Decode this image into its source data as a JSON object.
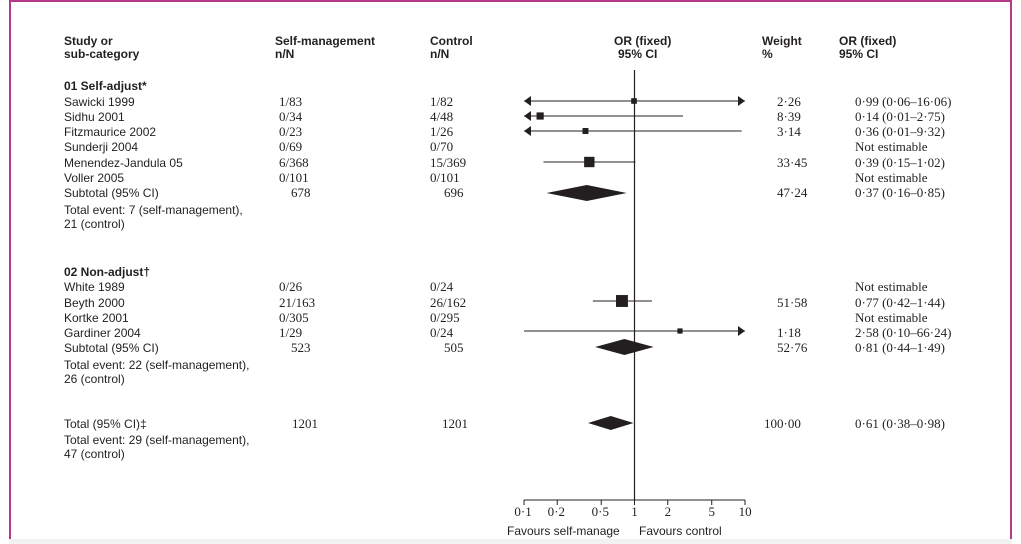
{
  "header": {
    "study_line1": "Study or",
    "study_line2": "sub-category",
    "sm_line1": "Self-management",
    "sm_line2": "n/N",
    "ctrl_line1": "Control",
    "ctrl_line2": "n/N",
    "or_line1": "OR (fixed)",
    "or_line2": "95% CI",
    "weight_line1": "Weight",
    "weight_line2": "%",
    "orci_line1": "OR (fixed)",
    "orci_line2": "95% CI"
  },
  "groups": [
    {
      "title": "01 Self-adjust*",
      "studies": [
        {
          "name": "Sawicki 1999",
          "sm": "1/83",
          "ctrl": "1/82",
          "weight": "2·26",
          "or_text": "0·99 (0·06–16·06)"
        },
        {
          "name": "Sidhu 2001",
          "sm": "0/34",
          "ctrl": "4/48",
          "weight": "8·39",
          "or_text": "0·14 (0·01–2·75)"
        },
        {
          "name": "Fitzmaurice 2002",
          "sm": "0/23",
          "ctrl": "1/26",
          "weight": "3·14",
          "or_text": "0·36 (0·01–9·32)"
        },
        {
          "name": "Sunderji 2004",
          "sm": "0/69",
          "ctrl": "0/70",
          "weight": "",
          "or_text": "Not estimable"
        },
        {
          "name": "Menendez-Jandula 05",
          "sm": "6/368",
          "ctrl": "15/369",
          "weight": "33·45",
          "or_text": "0·39 (0·15–1·02)"
        },
        {
          "name": "Voller 2005",
          "sm": "0/101",
          "ctrl": "0/101",
          "weight": "",
          "or_text": "Not estimable"
        }
      ],
      "subtotal": {
        "name": "Subtotal (95% CI)",
        "sm": "678",
        "ctrl": "696",
        "weight": "47·24",
        "or_text": "0·37 (0·16–0·85)"
      },
      "events_line1": "Total event: 7 (self-management),",
      "events_line2": "21 (control)"
    },
    {
      "title": "02 Non-adjust†",
      "studies": [
        {
          "name": "White 1989",
          "sm": "0/26",
          "ctrl": "0/24",
          "weight": "",
          "or_text": "Not estimable"
        },
        {
          "name": "Beyth 2000",
          "sm": "21/163",
          "ctrl": "26/162",
          "weight": "51·58",
          "or_text": "0·77 (0·42–1·44)"
        },
        {
          "name": "Kortke 2001",
          "sm": "0/305",
          "ctrl": "0/295",
          "weight": "",
          "or_text": "Not estimable"
        },
        {
          "name": "Gardiner 2004",
          "sm": "1/29",
          "ctrl": "0/24",
          "weight": "1·18",
          "or_text": "2·58 (0·10–66·24)"
        }
      ],
      "subtotal": {
        "name": "Subtotal (95% CI)",
        "sm": "523",
        "ctrl": "505",
        "weight": "52·76",
        "or_text": "0·81 (0·44–1·49)"
      },
      "events_line1": "Total event: 22 (self-management),",
      "events_line2": "26 (control)"
    }
  ],
  "total": {
    "name": "Total (95% CI)‡",
    "sm": "1201",
    "ctrl": "1201",
    "weight": "100·00",
    "or_text": "0·61 (0·38–0·98)",
    "events_line1": "Total event: 29 (self-management),",
    "events_line2": "47 (control)"
  },
  "axis": {
    "tick_labels": [
      "0·1",
      "0·2",
      "0·5",
      "1",
      "2",
      "5",
      "10"
    ],
    "favours_left": "Favours self-manage",
    "favours_right": "Favours control"
  },
  "chart_data": {
    "type": "forest",
    "scale": "log",
    "xlim": [
      0.1,
      10
    ],
    "ticks": [
      0.1,
      0.2,
      0.5,
      1,
      2,
      5,
      10
    ],
    "null_line": 1,
    "estimates": [
      {
        "study": "Sawicki 1999",
        "or": 0.99,
        "lo": 0.06,
        "hi": 16.06,
        "weight": 2.26
      },
      {
        "study": "Sidhu 2001",
        "or": 0.14,
        "lo": 0.01,
        "hi": 2.75,
        "weight": 8.39
      },
      {
        "study": "Fitzmaurice 2002",
        "or": 0.36,
        "lo": 0.01,
        "hi": 9.32,
        "weight": 3.14
      },
      {
        "study": "Menendez-Jandula 05",
        "or": 0.39,
        "lo": 0.15,
        "hi": 1.02,
        "weight": 33.45
      },
      {
        "study": "Subtotal 01",
        "or": 0.37,
        "lo": 0.16,
        "hi": 0.85,
        "weight": 47.24,
        "kind": "diamond"
      },
      {
        "study": "Beyth 2000",
        "or": 0.77,
        "lo": 0.42,
        "hi": 1.44,
        "weight": 51.58
      },
      {
        "study": "Gardiner 2004",
        "or": 2.58,
        "lo": 0.1,
        "hi": 66.24,
        "weight": 1.18
      },
      {
        "study": "Subtotal 02",
        "or": 0.81,
        "lo": 0.44,
        "hi": 1.49,
        "weight": 52.76,
        "kind": "diamond"
      },
      {
        "study": "Total",
        "or": 0.61,
        "lo": 0.38,
        "hi": 0.98,
        "weight": 100.0,
        "kind": "diamond"
      }
    ]
  }
}
